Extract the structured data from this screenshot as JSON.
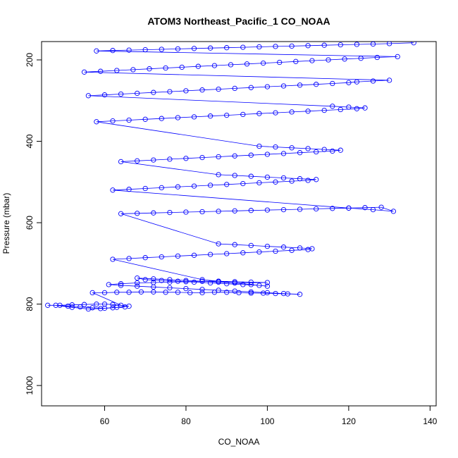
{
  "chart_data": {
    "type": "scatter",
    "title": "ATOM3 Northeast_Pacific_1 CO_NOAA",
    "xlabel": "CO_NOAA",
    "ylabel": "Pressure (mbar)",
    "xlim": [
      44.5,
      141.5
    ],
    "ylim": [
      1050,
      155
    ],
    "y_axis_inverted": true,
    "x_ticks": [
      60,
      80,
      100,
      120,
      140
    ],
    "y_ticks": [
      200,
      400,
      600,
      800,
      1000
    ],
    "grid": false,
    "legend": "none",
    "marker": "open-circle",
    "connect_points": true,
    "color": "#0000ff",
    "series": [
      {
        "x": [
          46,
          49,
          52,
          55,
          58,
          60,
          62,
          64,
          66,
          63,
          60,
          57,
          54,
          51,
          48,
          52,
          56,
          59,
          62,
          65,
          57,
          60,
          63,
          66,
          69,
          72,
          75,
          78,
          81,
          84,
          87,
          90,
          93,
          96,
          99,
          102,
          105,
          108,
          104,
          100,
          96,
          92,
          88,
          84,
          80,
          76,
          72,
          68,
          64,
          61,
          64,
          68,
          72,
          76,
          80,
          84,
          88,
          92,
          96,
          100,
          92,
          88,
          84,
          80,
          76,
          72,
          68,
          70,
          74,
          78,
          82,
          86,
          90,
          94,
          98,
          100,
          96,
          92,
          88,
          84,
          62,
          66,
          70,
          74,
          78,
          82,
          86,
          90,
          94,
          98,
          102,
          106,
          110,
          111,
          108,
          104,
          100,
          96,
          92,
          88,
          64,
          68,
          72,
          76,
          80,
          84,
          88,
          92,
          96,
          100,
          104,
          108,
          112,
          116,
          120,
          124,
          128,
          131,
          126,
          120,
          62,
          66,
          70,
          74,
          78,
          82,
          86,
          90,
          94,
          98,
          102,
          106,
          110,
          112,
          108,
          104,
          100,
          96,
          92,
          88,
          64,
          68,
          72,
          76,
          80,
          84,
          88,
          92,
          96,
          100,
          104,
          108,
          112,
          116,
          118,
          114,
          110,
          106,
          102,
          98,
          58,
          62,
          66,
          70,
          74,
          78,
          82,
          86,
          90,
          94,
          98,
          102,
          106,
          110,
          114,
          118,
          122,
          124,
          120,
          116,
          56,
          60,
          64,
          68,
          72,
          76,
          80,
          84,
          88,
          92,
          96,
          100,
          104,
          108,
          112,
          116,
          120,
          122,
          126,
          130,
          55,
          59,
          63,
          67,
          71,
          75,
          79,
          83,
          87,
          91,
          95,
          99,
          103,
          107,
          111,
          115,
          119,
          123,
          127,
          132,
          58,
          62,
          66,
          70,
          74,
          78,
          82,
          86,
          90,
          94,
          98,
          102,
          106,
          110,
          114,
          118,
          122,
          126,
          130,
          136
        ],
        "y": [
          803,
          803,
          802,
          801,
          800,
          800,
          801,
          803,
          805,
          808,
          810,
          809,
          807,
          805,
          803,
          808,
          812,
          811,
          809,
          807,
          772,
          772,
          771,
          771,
          770,
          770,
          771,
          771,
          772,
          772,
          771,
          771,
          772,
          773,
          773,
          774,
          775,
          776,
          774,
          772,
          770,
          768,
          766,
          764,
          762,
          760,
          758,
          756,
          754,
          752,
          750,
          748,
          747,
          746,
          745,
          744,
          744,
          745,
          746,
          747,
          748,
          746,
          744,
          742,
          740,
          738,
          736,
          740,
          742,
          744,
          746,
          748,
          750,
          752,
          754,
          756,
          752,
          748,
          744,
          740,
          690,
          688,
          686,
          684,
          682,
          680,
          678,
          676,
          674,
          672,
          670,
          668,
          666,
          664,
          662,
          660,
          658,
          656,
          654,
          652,
          578,
          577,
          576,
          575,
          574,
          573,
          572,
          571,
          570,
          569,
          568,
          567,
          566,
          565,
          564,
          563,
          562,
          572,
          568,
          564,
          520,
          518,
          516,
          514,
          512,
          510,
          508,
          506,
          504,
          502,
          500,
          498,
          496,
          494,
          492,
          490,
          488,
          486,
          484,
          482,
          450,
          448,
          446,
          444,
          442,
          440,
          438,
          436,
          434,
          432,
          430,
          428,
          426,
          424,
          422,
          420,
          418,
          416,
          414,
          412,
          352,
          350,
          348,
          346,
          344,
          342,
          340,
          338,
          336,
          334,
          332,
          330,
          328,
          326,
          324,
          322,
          320,
          318,
          316,
          314,
          288,
          286,
          284,
          282,
          280,
          278,
          276,
          274,
          272,
          270,
          268,
          266,
          264,
          262,
          260,
          258,
          256,
          254,
          252,
          250,
          230,
          228,
          226,
          224,
          222,
          220,
          218,
          216,
          214,
          212,
          210,
          208,
          206,
          204,
          202,
          200,
          198,
          196,
          194,
          192,
          178,
          177,
          176,
          175,
          174,
          173,
          172,
          171,
          170,
          169,
          168,
          167,
          166,
          165,
          164,
          163,
          162,
          161,
          160,
          158
        ]
      }
    ]
  }
}
